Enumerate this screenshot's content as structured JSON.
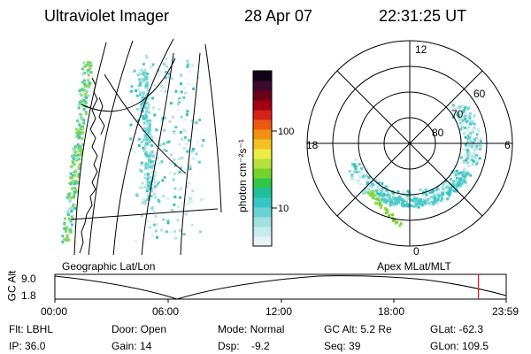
{
  "header": {
    "instrument": "Ultraviolet Imager",
    "date": "28 Apr 07",
    "time": "22:31:25 UT"
  },
  "colorbar": {
    "label": "photon cm⁻²s⁻¹",
    "ticks": [
      "100",
      "10"
    ],
    "colors": [
      "#e8f4f4",
      "#c6ecec",
      "#9fe0e0",
      "#6ad2d2",
      "#36c6c6",
      "#1fbf9c",
      "#2fc64a",
      "#74d22b",
      "#b8e03c",
      "#ecec44",
      "#f2c024",
      "#f09010",
      "#ec5a12",
      "#d8201a",
      "#a00012",
      "#6c0016",
      "#3c0a30",
      "#140018"
    ]
  },
  "panels": {
    "left_label": "Geographic Lat/Lon",
    "right_label": "Apex MLat/MLT"
  },
  "polar": {
    "mlt_labels": [
      "12",
      "18",
      "6",
      "0"
    ],
    "lat_labels": [
      "60",
      "70",
      "80"
    ]
  },
  "altitude_plot": {
    "ylabel": "GC Alt",
    "yticks": [
      "9.0",
      "1.8"
    ],
    "xticks": [
      "00:00",
      "06:00",
      "12:00",
      "18:00",
      "23:59"
    ],
    "marker_fraction": 0.9385,
    "marker_color": "#e02020"
  },
  "info": {
    "filter": "Flt: LBHL",
    "ip": "IP: 36.0",
    "door": "Door: Open",
    "gain": "Gain: 14",
    "mode": "Mode: Normal",
    "dsp": "Dsp:    -9.2",
    "gc_alt": "GC Alt: 5.2 Re",
    "seq": "Seq: 39",
    "glat": "GLat: -62.3",
    "glon": "GLon: 109.5"
  }
}
